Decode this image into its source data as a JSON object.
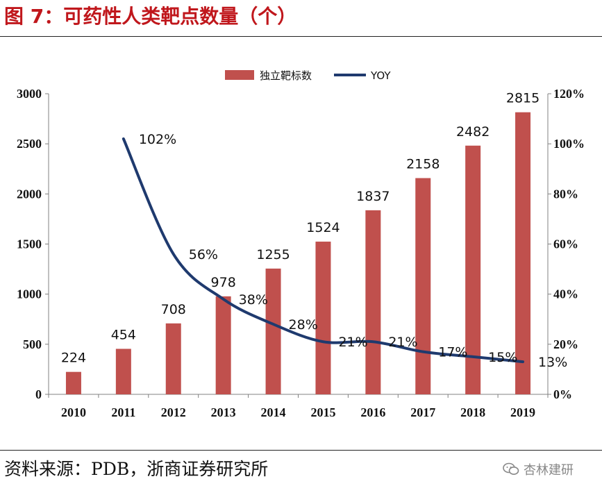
{
  "figure": {
    "title": "图 7：可药性人类靶点数量（个）",
    "source": "资料来源：PDB，浙商证券研究所",
    "watermark": "杏林建研",
    "watermark_icon": "wechat-icon"
  },
  "chart_data": {
    "type": "bar+line",
    "title": "可药性人类靶点数量（个）",
    "categories": [
      "2010",
      "2011",
      "2012",
      "2013",
      "2014",
      "2015",
      "2016",
      "2017",
      "2018",
      "2019"
    ],
    "series": [
      {
        "name": "独立靶标数",
        "type": "bar",
        "axis": "left",
        "color": "#c0504d",
        "values": [
          224,
          454,
          708,
          978,
          1255,
          1524,
          1837,
          2158,
          2482,
          2815
        ],
        "labels": [
          "224",
          "454",
          "708",
          "978",
          "1255",
          "1524",
          "1837",
          "2158",
          "2482",
          "2815"
        ]
      },
      {
        "name": "YOY",
        "type": "line",
        "axis": "right",
        "color": "#1f3a6e",
        "values": [
          null,
          102,
          56,
          38,
          28,
          21,
          21,
          17,
          15,
          13
        ],
        "labels": [
          null,
          "102%",
          "56%",
          "38%",
          "28%",
          "21%",
          "21%",
          "17%",
          "15%",
          "13%"
        ]
      }
    ],
    "y_left": {
      "range": [
        0,
        3000
      ],
      "ticks": [
        0,
        500,
        1000,
        1500,
        2000,
        2500,
        3000
      ],
      "tick_labels": [
        "0",
        "500",
        "1000",
        "1500",
        "2000",
        "2500",
        "3000"
      ]
    },
    "y_right": {
      "range": [
        0,
        120
      ],
      "ticks": [
        0,
        20,
        40,
        60,
        80,
        100,
        120
      ],
      "tick_labels": [
        "0%",
        "20%",
        "40%",
        "60%",
        "80%",
        "100%",
        "120%"
      ]
    },
    "grid": false,
    "legend": "top-center"
  }
}
